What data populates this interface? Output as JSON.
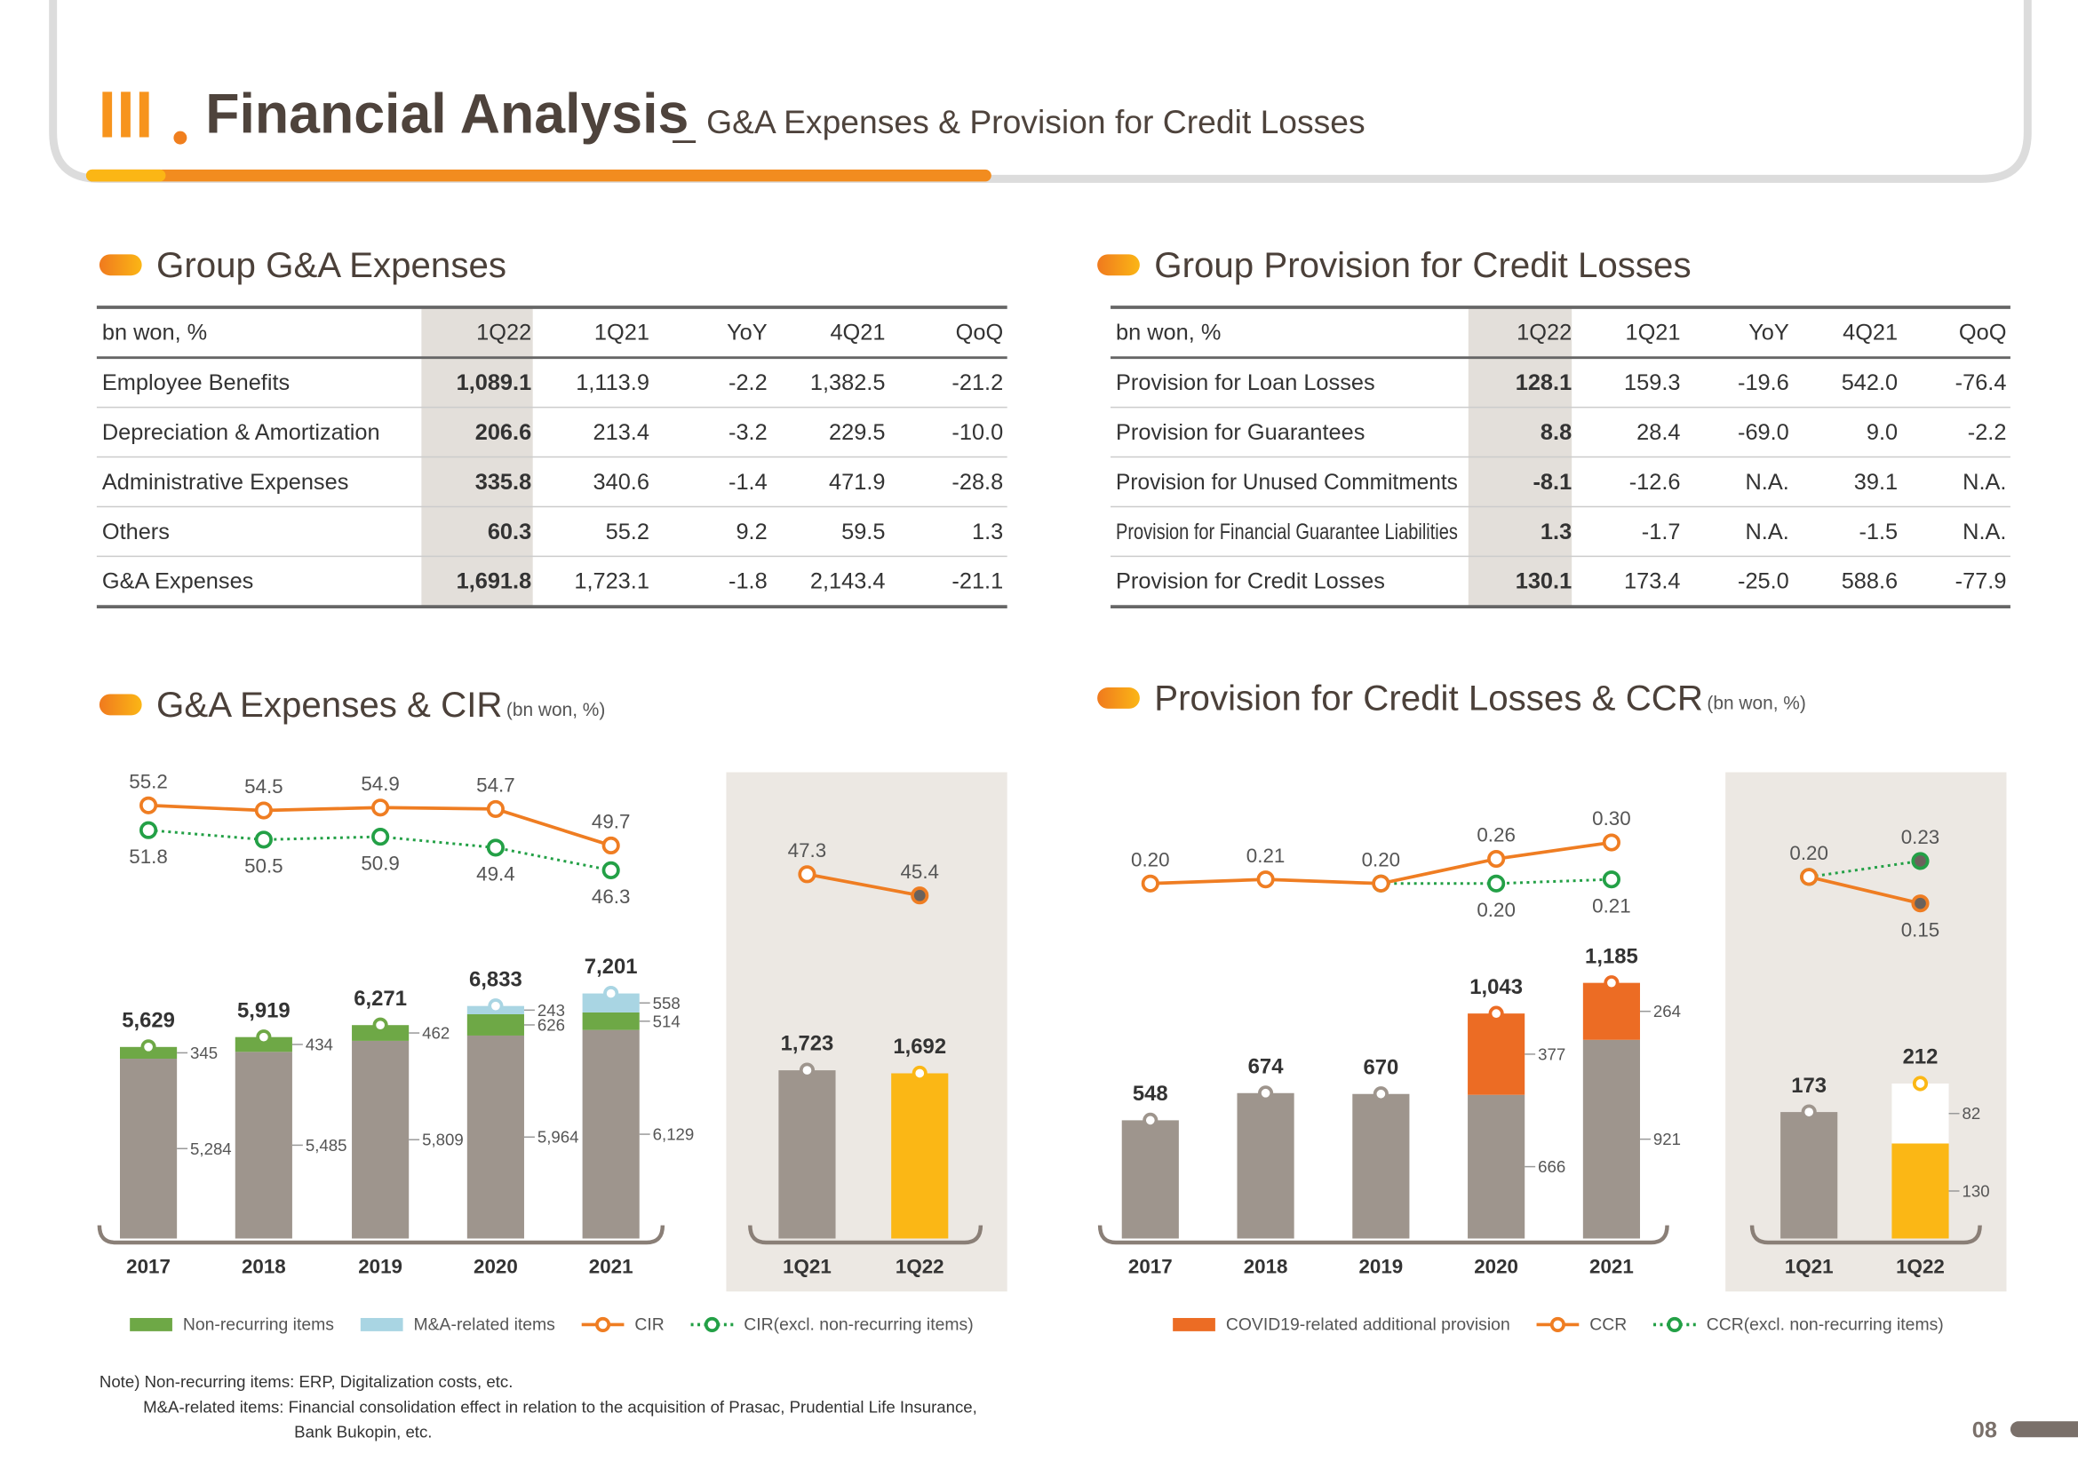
{
  "header": {
    "numeral": "III",
    "title": "Financial Analysis",
    "separator": "_",
    "subtitle": "G&A Expenses & Provision for Credit Losses"
  },
  "tables": [
    {
      "title": "Group G&A Expenses",
      "columns": [
        "bn won, %",
        "1Q22",
        "1Q21",
        "YoY",
        "4Q21",
        "QoQ"
      ],
      "rows": [
        [
          "Employee Benefits",
          "1,089.1",
          "1,113.9",
          "-2.2",
          "1,382.5",
          "-21.2"
        ],
        [
          "Depreciation & Amortization",
          "206.6",
          "213.4",
          "-3.2",
          "229.5",
          "-10.0"
        ],
        [
          "Administrative Expenses",
          "335.8",
          "340.6",
          "-1.4",
          "471.9",
          "-28.8"
        ],
        [
          "Others",
          "60.3",
          "55.2",
          "9.2",
          "59.5",
          "1.3"
        ],
        [
          "G&A Expenses",
          "1,691.8",
          "1,723.1",
          "-1.8",
          "2,143.4",
          "-21.1"
        ]
      ]
    },
    {
      "title": "Group Provision for Credit Losses",
      "columns": [
        "bn won, %",
        "1Q22",
        "1Q21",
        "YoY",
        "4Q21",
        "QoQ"
      ],
      "rows": [
        [
          "Provision for Loan Losses",
          "128.1",
          "159.3",
          "-19.6",
          "542.0",
          "-76.4"
        ],
        [
          "Provision for Guarantees",
          "8.8",
          "28.4",
          "-69.0",
          "9.0",
          "-2.2"
        ],
        [
          "Provision for Unused Commitments",
          "-8.1",
          "-12.6",
          "N.A.",
          "39.1",
          "N.A."
        ],
        [
          "Provision for Financial Guarantee Liabilities",
          "1.3",
          "-1.7",
          "N.A.",
          "-1.5",
          "N.A."
        ],
        [
          "Provision for Credit Losses",
          "130.1",
          "173.4",
          "-25.0",
          "588.6",
          "-77.9"
        ]
      ]
    }
  ],
  "chart_data": [
    {
      "type": "combo",
      "title": "G&A Expenses & CIR",
      "unit": "(bn won, %)",
      "categories": [
        "2017",
        "2018",
        "2019",
        "2020",
        "2021"
      ],
      "series": [
        {
          "type": "bar",
          "color": "#9e958d",
          "values": [
            5284,
            5485,
            5809,
            5964,
            6129
          ],
          "value_labels": [
            "5,284",
            "5,485",
            "5,809",
            "5,964",
            "6,129"
          ]
        },
        {
          "type": "bar",
          "name": "Non-recurring items",
          "color": "#6ea846",
          "values": [
            345,
            434,
            462,
            626,
            514
          ]
        },
        {
          "type": "bar",
          "name": "M&A-related items",
          "color": "#a9d5e3",
          "values": [
            null,
            null,
            null,
            243,
            558
          ]
        },
        {
          "type": "line",
          "name": "CIR",
          "color": "#ef7d22",
          "values": [
            55.2,
            54.5,
            54.9,
            54.7,
            49.7
          ],
          "axis": "y2",
          "label_position": "above"
        },
        {
          "type": "line",
          "name": "CIR(excl. non-recurring items)",
          "color": "#23a046",
          "dashed": true,
          "values": [
            51.8,
            50.5,
            50.9,
            49.4,
            46.3
          ],
          "axis": "y2",
          "label_position": "below"
        }
      ],
      "totals": {
        "values": [
          5629,
          5919,
          6271,
          6833,
          7201
        ],
        "value_labels": [
          "5,629",
          "5,919",
          "6,271",
          "6,833",
          "7,201"
        ]
      }
    },
    {
      "type": "combo",
      "categories": [
        "1Q21",
        "1Q22"
      ],
      "series": [
        {
          "type": "bar",
          "color": "#9e958d",
          "colors": [
            "#9e958d",
            "#fbb715"
          ],
          "values": [
            1723,
            1692
          ],
          "value_labels": [
            "1,723",
            "1,692"
          ]
        },
        {
          "type": "line",
          "color": "#ef7d22",
          "values": [
            47.3,
            45.4
          ],
          "axis": "y2",
          "label_position": "above"
        }
      ],
      "filled_last": true
    },
    {
      "type": "combo",
      "title": "Provision for Credit Losses & CCR",
      "unit": "(bn won, %)",
      "categories": [
        "2017",
        "2018",
        "2019",
        "2020",
        "2021"
      ],
      "series": [
        {
          "type": "bar",
          "color": "#9e958d",
          "values": [
            548,
            674,
            670,
            666,
            921
          ]
        },
        {
          "type": "bar",
          "name": "COVID19-related additional provision",
          "color": "#ec6c24",
          "values": [
            null,
            null,
            null,
            377,
            264
          ]
        },
        {
          "type": "line",
          "name": "CCR",
          "color": "#ef7d22",
          "values": [
            0.2,
            0.21,
            0.2,
            0.26,
            0.3
          ],
          "value_labels": [
            "0.20",
            "0.21",
            "0.20",
            "0.26",
            "0.30"
          ],
          "axis": "y2",
          "label_position": "above"
        },
        {
          "type": "line",
          "name": "CCR(excl. non-recurring items)",
          "color": "#23a046",
          "dashed": true,
          "values": [
            null,
            null,
            0.2,
            0.2,
            0.21
          ],
          "value_labels": [
            null,
            null,
            null,
            "0.20",
            "0.21"
          ],
          "axis": "y2",
          "label_position": "below"
        }
      ],
      "totals": {
        "values": [
          548,
          674,
          670,
          1043,
          1185
        ],
        "value_labels": [
          "548",
          "674",
          "670",
          "1,043",
          "1,185"
        ]
      }
    },
    {
      "type": "combo",
      "categories": [
        "1Q21",
        "1Q22"
      ],
      "series": [
        {
          "type": "bar",
          "color": "#9e958d",
          "colors": [
            "#9e958d",
            "#fbb715"
          ],
          "values": [
            173,
            130
          ]
        },
        {
          "type": "bar",
          "color": "#ffffff",
          "values": [
            null,
            82
          ]
        },
        {
          "type": "line",
          "color": "#ef7d22",
          "values": [
            0.2,
            0.15
          ],
          "value_labels": [
            null,
            "0.15"
          ],
          "axis": "y2",
          "label_position": "below"
        },
        {
          "type": "line",
          "color": "#23a046",
          "dashed": true,
          "values": [
            0.2,
            0.23
          ],
          "value_labels": [
            "0.20",
            "0.23"
          ],
          "axis": "y2",
          "label_position": "above"
        }
      ],
      "totals": {
        "values": [
          173,
          212
        ]
      },
      "filled_last": true
    }
  ],
  "notes": [
    "Note) Non-recurring items: ERP, Digitalization costs, etc.",
    "M&A-related items: Financial consolidation effect in relation to the acquisition of Prasac, Prudential Life Insurance,",
    "Bank Bukopin, etc."
  ],
  "page_number": "08"
}
